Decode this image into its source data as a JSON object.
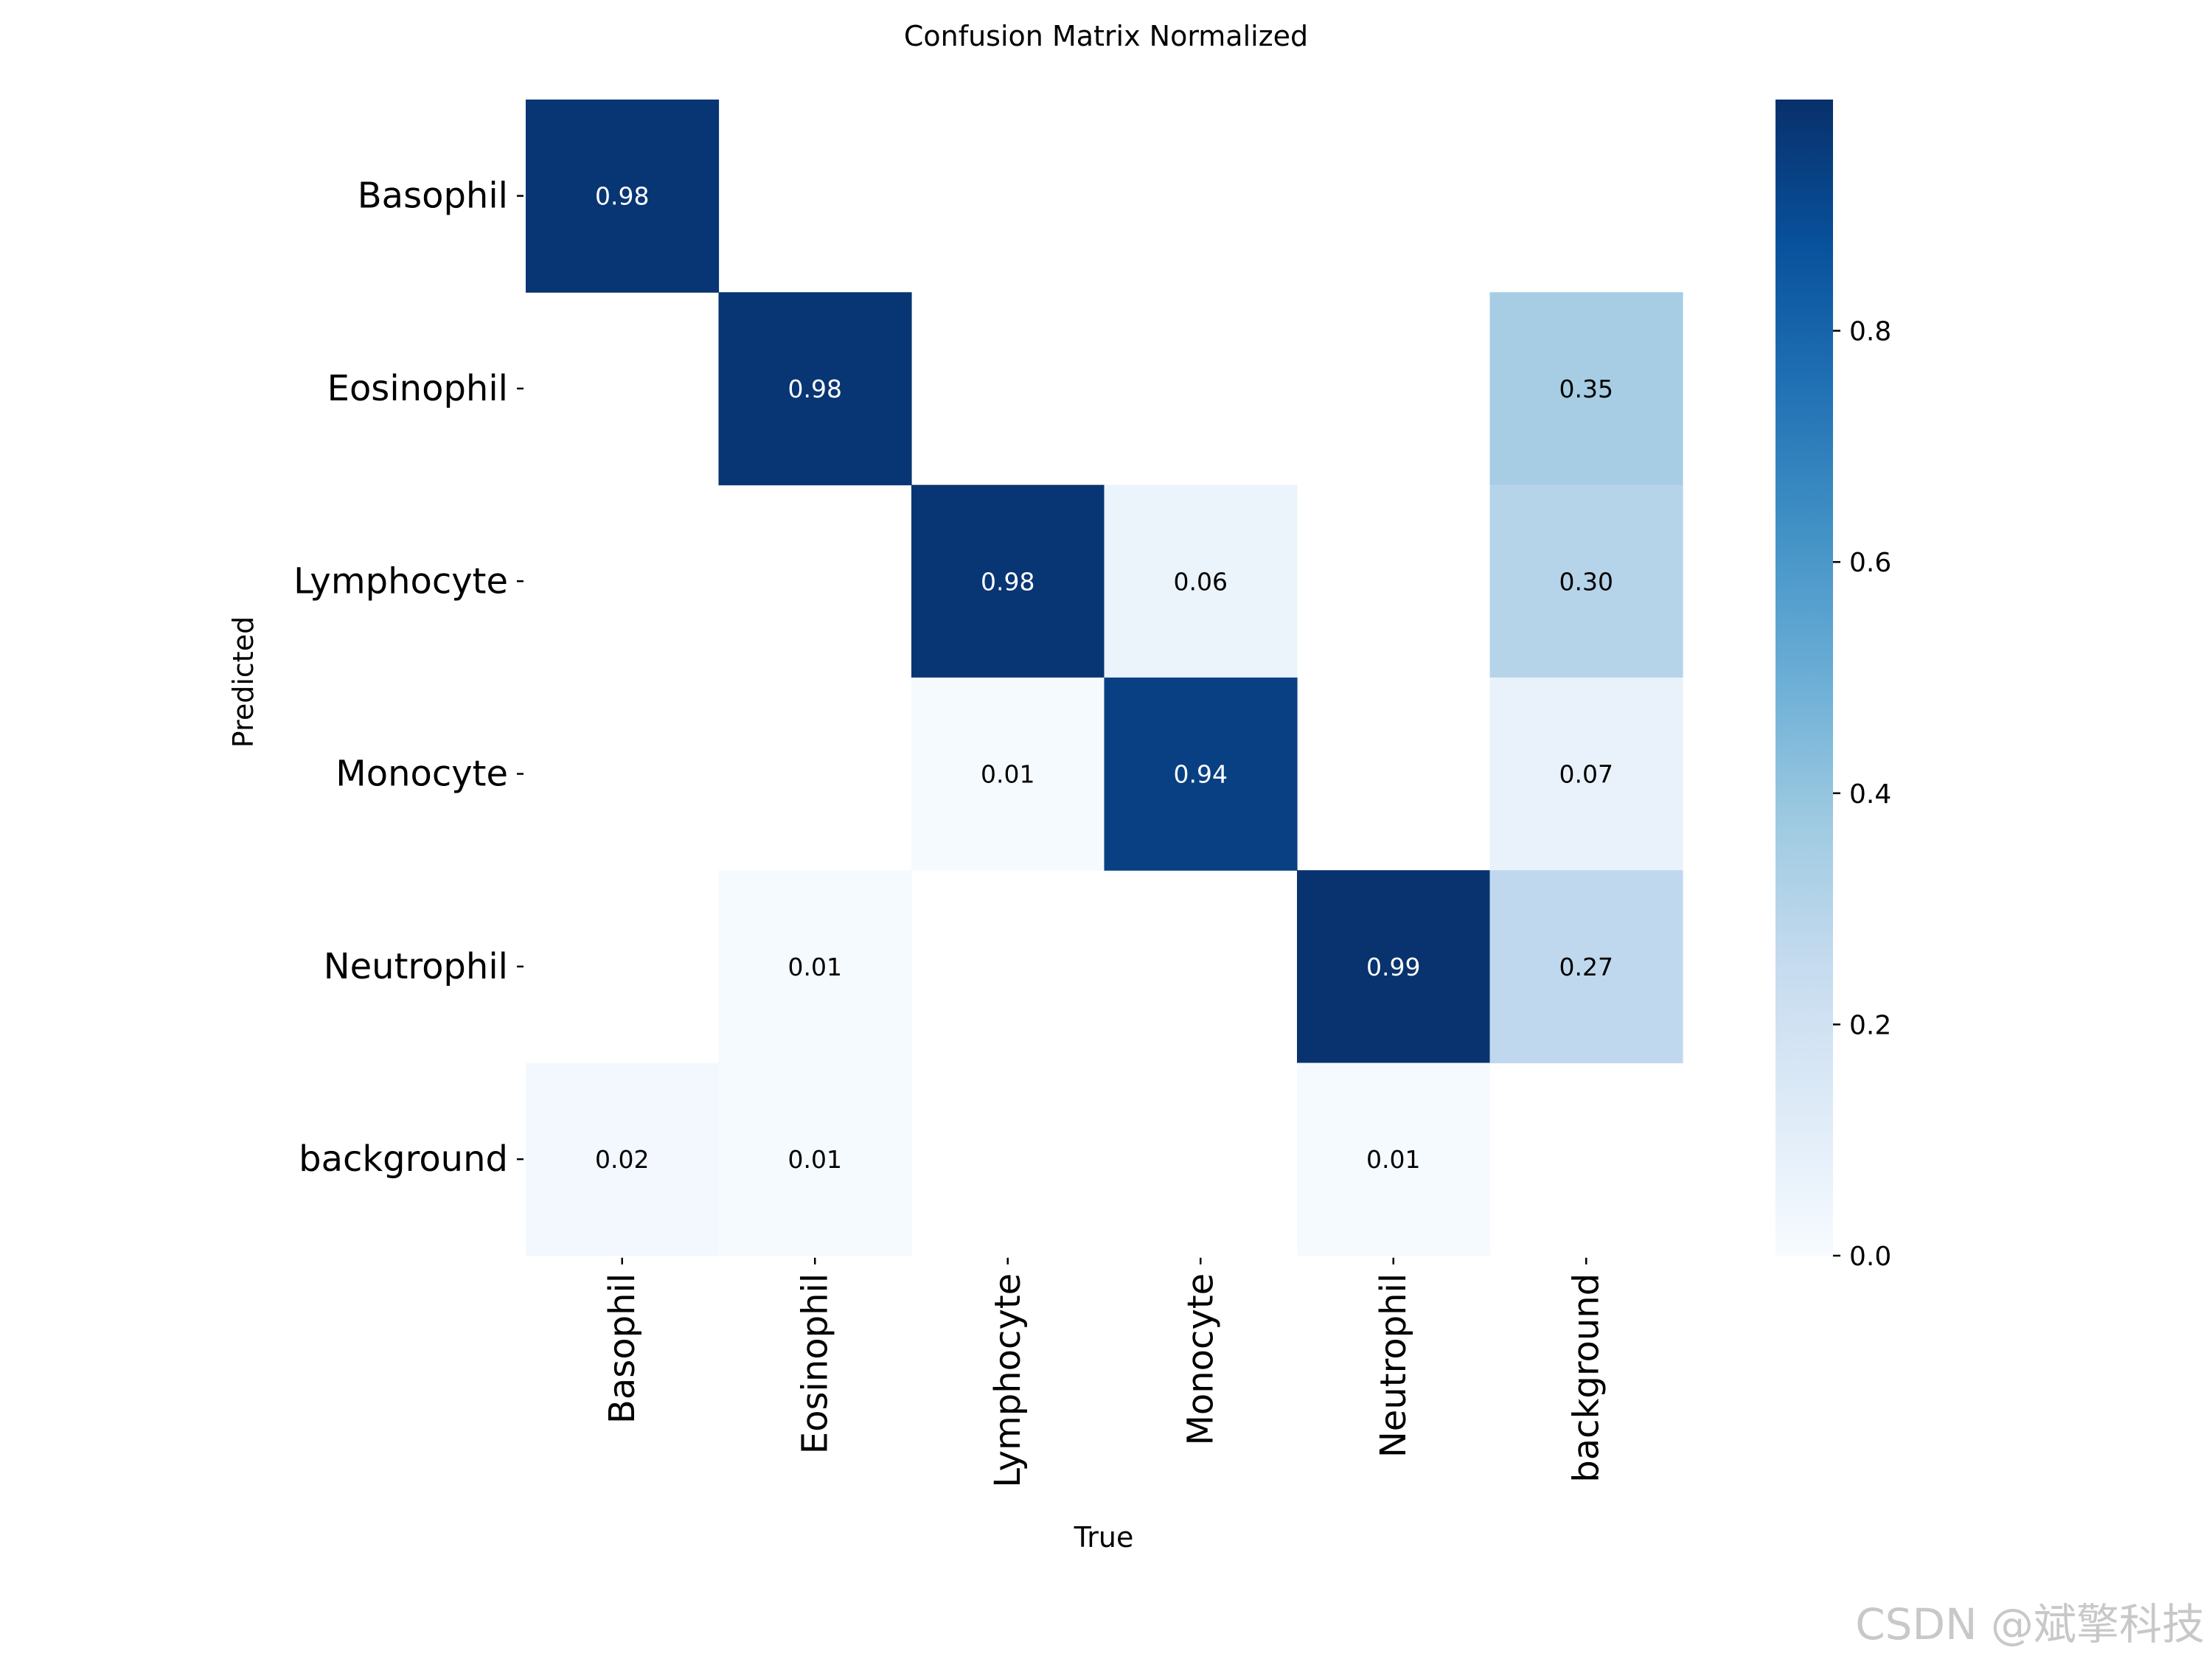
{
  "chart_data": {
    "type": "heatmap",
    "title": "Confusion Matrix Normalized",
    "xlabel": "True",
    "ylabel": "Predicted",
    "x_categories": [
      "Basophil",
      "Eosinophil",
      "Lymphocyte",
      "Monocyte",
      "Neutrophil",
      "background"
    ],
    "y_categories": [
      "Basophil",
      "Eosinophil",
      "Lymphocyte",
      "Monocyte",
      "Neutrophil",
      "background"
    ],
    "values": [
      [
        0.98,
        null,
        null,
        null,
        null,
        null
      ],
      [
        null,
        0.98,
        null,
        null,
        null,
        0.35
      ],
      [
        null,
        null,
        0.98,
        0.06,
        null,
        0.3
      ],
      [
        null,
        null,
        0.01,
        0.94,
        null,
        0.07
      ],
      [
        null,
        0.01,
        null,
        null,
        0.99,
        0.27
      ],
      [
        0.02,
        0.01,
        null,
        null,
        0.01,
        null
      ]
    ],
    "colormap": "Blues",
    "colorbar": {
      "range": [
        0,
        1
      ],
      "ticks": [
        0.0,
        0.2,
        0.4,
        0.6,
        0.8
      ],
      "tick_labels": [
        "0.0",
        "0.2",
        "0.4",
        "0.6",
        "0.8"
      ]
    }
  },
  "watermark": "CSDN @斌擎科技"
}
